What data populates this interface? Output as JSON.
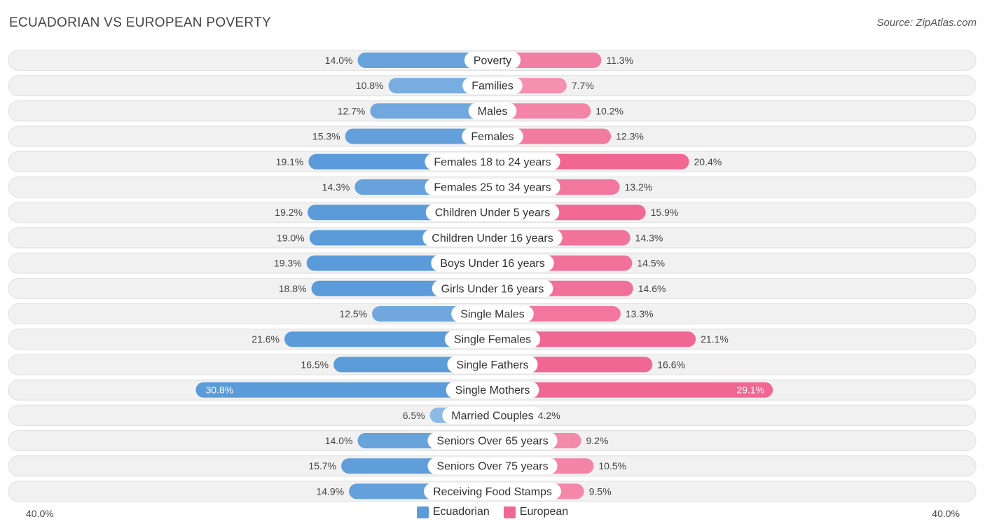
{
  "header": {
    "title": "ECUADORIAN VS EUROPEAN POVERTY",
    "source": "Source: ZipAtlas.com"
  },
  "axis": {
    "left_label": "40.0%",
    "right_label": "40.0%"
  },
  "legend": [
    {
      "label": "Ecuadorian",
      "color": "#5b9bd9"
    },
    {
      "label": "European",
      "color": "#f06793"
    }
  ],
  "chart_data": {
    "type": "bar",
    "orientation": "horizontal-diverging",
    "title": "ECUADORIAN VS EUROPEAN POVERTY",
    "xlim": [
      -40,
      40
    ],
    "unit": "%",
    "categories": [
      "Poverty",
      "Families",
      "Males",
      "Females",
      "Females 18 to 24 years",
      "Females 25 to 34 years",
      "Children Under 5 years",
      "Children Under 16 years",
      "Boys Under 16 years",
      "Girls Under 16 years",
      "Single Males",
      "Single Females",
      "Single Fathers",
      "Single Mothers",
      "Married Couples",
      "Seniors Over 65 years",
      "Seniors Over 75 years",
      "Receiving Food Stamps"
    ],
    "series": [
      {
        "name": "Ecuadorian",
        "color": "#5b9bd9",
        "values": [
          14.0,
          10.8,
          12.7,
          15.3,
          19.1,
          14.3,
          19.2,
          19.0,
          19.3,
          18.8,
          12.5,
          21.6,
          16.5,
          30.8,
          6.5,
          14.0,
          15.7,
          14.9
        ],
        "labels": [
          "14.0%",
          "10.8%",
          "12.7%",
          "15.3%",
          "19.1%",
          "14.3%",
          "19.2%",
          "19.0%",
          "19.3%",
          "18.8%",
          "12.5%",
          "21.6%",
          "16.5%",
          "30.8%",
          "6.5%",
          "14.0%",
          "15.7%",
          "14.9%"
        ]
      },
      {
        "name": "European",
        "color": "#f06793",
        "values": [
          11.3,
          7.7,
          10.2,
          12.3,
          20.4,
          13.2,
          15.9,
          14.3,
          14.5,
          14.6,
          13.3,
          21.1,
          16.6,
          29.1,
          4.2,
          9.2,
          10.5,
          9.5
        ],
        "labels": [
          "11.3%",
          "7.7%",
          "10.2%",
          "12.3%",
          "20.4%",
          "13.2%",
          "15.9%",
          "14.3%",
          "14.5%",
          "14.6%",
          "13.3%",
          "21.1%",
          "16.6%",
          "29.1%",
          "4.2%",
          "9.2%",
          "10.5%",
          "9.5%"
        ]
      }
    ]
  }
}
